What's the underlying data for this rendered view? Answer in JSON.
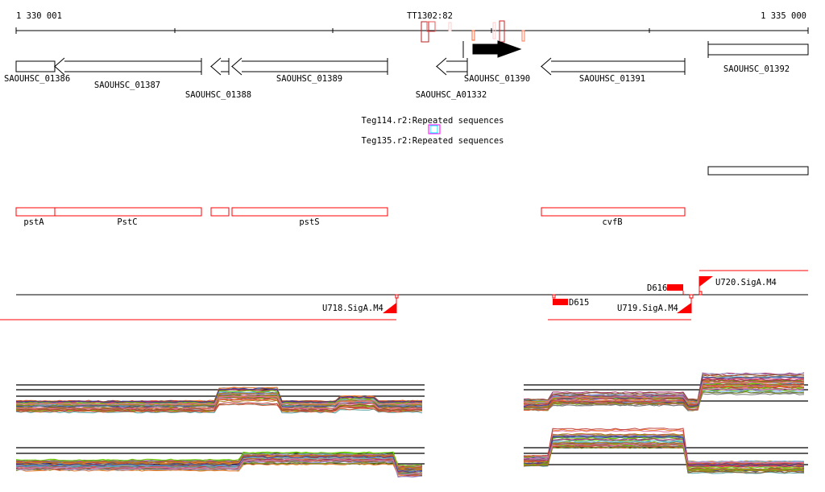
{
  "ruler": {
    "start_label": "1 330 001",
    "end_label": "1 335 000",
    "marker_label": "TT1302:82"
  },
  "genes": [
    {
      "id": "SAOUHSC_01386",
      "strand": "none"
    },
    {
      "id": "SAOUHSC_01387",
      "strand": "-"
    },
    {
      "id": "SAOUHSC_01388",
      "strand": "-"
    },
    {
      "id": "SAOUHSC_01389",
      "strand": "-"
    },
    {
      "id": "SAOUHSC_A01332",
      "strand": "-"
    },
    {
      "id": "SAOUHSC_01390",
      "strand": "+",
      "highlighted": true
    },
    {
      "id": "SAOUHSC_01391",
      "strand": "-"
    },
    {
      "id": "SAOUHSC_01392",
      "strand": "none"
    }
  ],
  "repeats": {
    "label1": "Teg114.r2:Repeated sequences",
    "label2": "Teg135.r2:Repeated sequences"
  },
  "operon_genes": [
    "pstA",
    "PstC",
    "pstS",
    "cvfB"
  ],
  "promoters": {
    "u718": "U718.SigA.M4",
    "u719": "U719.SigA.M4",
    "u720": "U720.SigA.M4",
    "d615": "D615",
    "d616": "D616"
  },
  "colors": {
    "feature": "#ff0000",
    "gene_selected": "#000000",
    "repeat_magenta": "#ff00ff",
    "repeat_cyan": "#00ffff"
  }
}
